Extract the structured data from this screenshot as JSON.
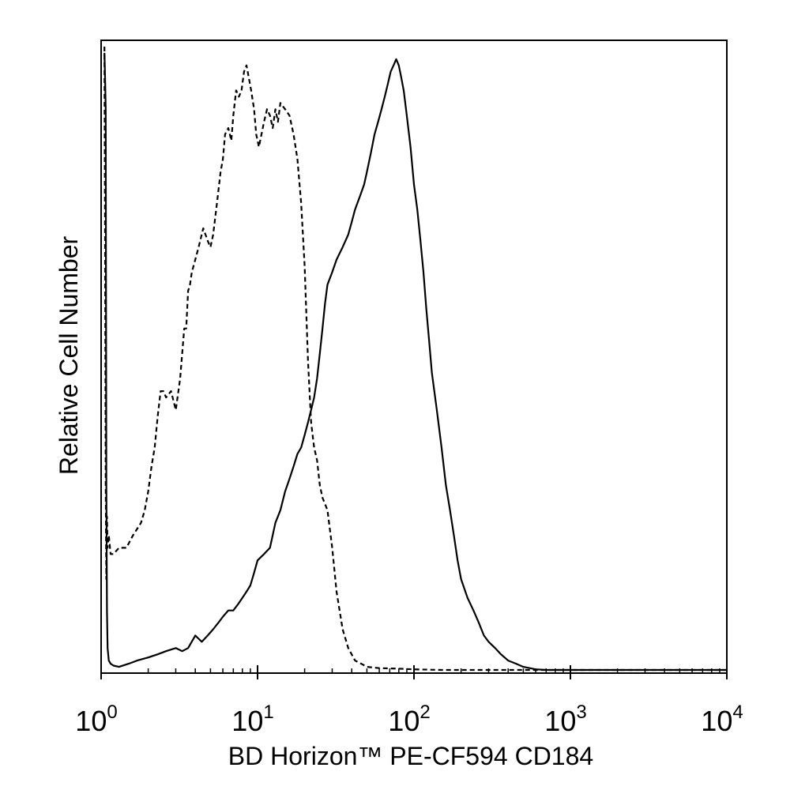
{
  "chart_data": {
    "type": "line",
    "xlabel": "BD Horizon™ PE-CF594 CD184",
    "ylabel": "Relative Cell Number",
    "x_scale": "log",
    "xlim": [
      1,
      10000
    ],
    "ylim": [
      0,
      100
    ],
    "x_ticks": [
      {
        "base": "10",
        "exp": "0",
        "value": 1
      },
      {
        "base": "10",
        "exp": "1",
        "value": 10
      },
      {
        "base": "10",
        "exp": "2",
        "value": 100
      },
      {
        "base": "10",
        "exp": "3",
        "value": 1000
      },
      {
        "base": "10",
        "exp": "4",
        "value": 10000
      }
    ],
    "grid": false,
    "legend": "none",
    "series": [
      {
        "style": "dashed",
        "color": "#000000",
        "x": [
          1.05,
          1.06,
          1.07,
          1.08,
          1.09,
          1.1,
          1.12,
          1.15,
          1.2,
          1.3,
          1.45,
          1.6,
          1.8,
          1.9,
          2.0,
          2.1,
          2.2,
          2.3,
          2.4,
          2.5,
          2.6,
          2.8,
          3.0,
          3.2,
          3.4,
          3.5,
          3.6,
          3.7,
          3.8,
          4.0,
          4.2,
          4.5,
          4.8,
          5.0,
          5.2,
          5.5,
          5.8,
          6.0,
          6.2,
          6.5,
          6.8,
          7.0,
          7.3,
          7.6,
          7.9,
          8.2,
          8.5,
          8.8,
          9.1,
          9.5,
          9.8,
          10.2,
          10.6,
          11.0,
          11.5,
          12.0,
          12.5,
          13.0,
          13.5,
          14.0,
          15.0,
          16.0,
          17.0,
          18.0,
          19.0,
          20.0,
          21.0,
          22.0,
          23.0,
          24.0,
          25.0,
          26.0,
          27.0,
          28.0,
          30.0,
          32.0,
          35.0,
          38.0,
          42.0,
          46.0,
          50.0,
          60.0,
          80.0,
          100.0,
          150.0,
          200.0,
          300.0,
          500.0,
          800.0,
          1000.0,
          2000.0,
          5000.0,
          10000.0
        ],
        "y": [
          100,
          70,
          30,
          15,
          25,
          20,
          22,
          19,
          19,
          20,
          20,
          22,
          24,
          26,
          29,
          33,
          36,
          41,
          45,
          45,
          44,
          45,
          42,
          47,
          55,
          55,
          61,
          62,
          64,
          66,
          68,
          71,
          69,
          68,
          70,
          75,
          80,
          82,
          86,
          87,
          85,
          89,
          93,
          92,
          93,
          96,
          97,
          95,
          93,
          90,
          86,
          84,
          86,
          88,
          90,
          89,
          87,
          90,
          88,
          91,
          90,
          89,
          86,
          82,
          75,
          65,
          50,
          40,
          36,
          34,
          30,
          28,
          27,
          26,
          20,
          13,
          7,
          4,
          2,
          1.5,
          1,
          0.8,
          0.7,
          0.6,
          0.5,
          0.4,
          0.3,
          0.2,
          0.15,
          0.1,
          0.05,
          0.02,
          0
        ]
      },
      {
        "style": "solid",
        "color": "#000000",
        "x": [
          1.05,
          1.06,
          1.07,
          1.08,
          1.09,
          1.1,
          1.12,
          1.15,
          1.2,
          1.3,
          1.5,
          1.7,
          2.0,
          2.3,
          2.6,
          3.0,
          3.3,
          3.6,
          4.0,
          4.4,
          4.8,
          5.2,
          5.6,
          6.0,
          6.5,
          7.0,
          7.5,
          8.0,
          8.5,
          9.0,
          9.5,
          10.0,
          11.0,
          12.0,
          13.0,
          14.0,
          15.0,
          16.0,
          17.0,
          18.0,
          19.0,
          20.0,
          21.0,
          22.0,
          23.0,
          24.0,
          25.0,
          26.0,
          27.0,
          28.0,
          30.0,
          32.0,
          35.0,
          38.0,
          40.0,
          42.0,
          45.0,
          48.0,
          50.0,
          53.0,
          56.0,
          59.0,
          62.0,
          65.0,
          68.0,
          71.0,
          74.0,
          77.0,
          80.0,
          83.0,
          86.0,
          90.0,
          95.0,
          100.0,
          105.0,
          110.0,
          115.0,
          120.0,
          125.0,
          130.0,
          140.0,
          150.0,
          160.0,
          170.0,
          180.0,
          190.0,
          200.0,
          220.0,
          240.0,
          260.0,
          280.0,
          300.0,
          330.0,
          360.0,
          400.0,
          450.0,
          500.0,
          550.0,
          600.0,
          700.0,
          800.0,
          900.0,
          1000.0,
          1500.0,
          2000.0,
          5000.0,
          10000.0
        ],
        "y": [
          99,
          95,
          90,
          30,
          10,
          4,
          2,
          1.5,
          1.2,
          1,
          1.5,
          2,
          2.5,
          3,
          3.5,
          4,
          3.5,
          4,
          6,
          5,
          6,
          7,
          8,
          9,
          10,
          10,
          11,
          12,
          13,
          14,
          16,
          18,
          19,
          20,
          24,
          26,
          29,
          31,
          33,
          35,
          36,
          38,
          40,
          42,
          44,
          47,
          51,
          55,
          59,
          62,
          64,
          66,
          68,
          70,
          72,
          74,
          76,
          78,
          80,
          83,
          86,
          88,
          90,
          92,
          94,
          96,
          97,
          98,
          97,
          95,
          93,
          89,
          84,
          78,
          74,
          69,
          64,
          58,
          53,
          48,
          42,
          36,
          30,
          26,
          22,
          18,
          15,
          12,
          10,
          8,
          6,
          5,
          4,
          3,
          2,
          1.5,
          1,
          0.8,
          0.6,
          0.5,
          0.4,
          0.3,
          0.2,
          0.1,
          0.05,
          0.02,
          0
        ]
      }
    ]
  }
}
